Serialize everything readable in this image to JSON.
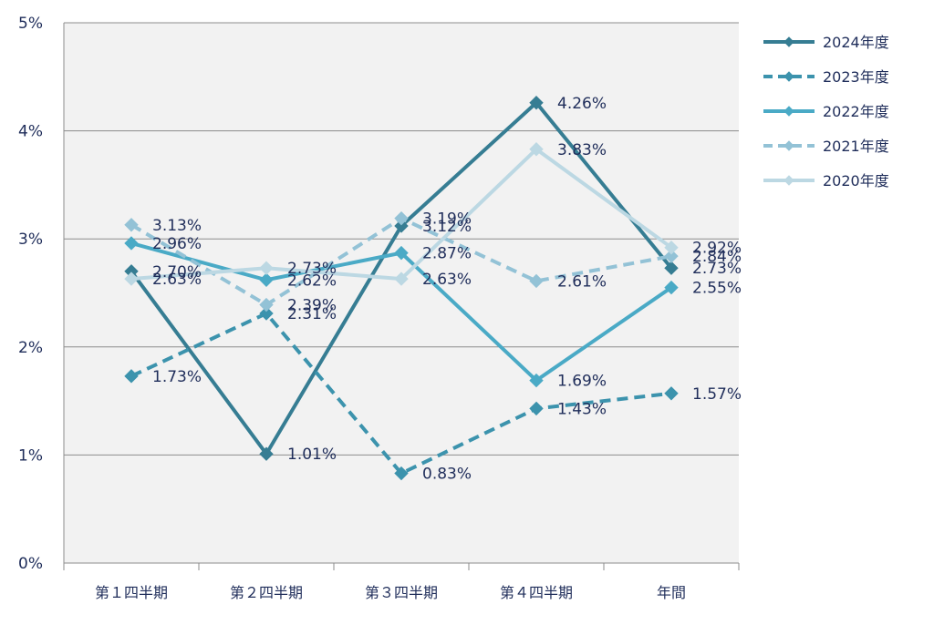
{
  "chart_data": {
    "type": "line",
    "categories": [
      "第１四半期",
      "第２四半期",
      "第３四半期",
      "第４四半期",
      "年間"
    ],
    "ylim": [
      0,
      5
    ],
    "yticks": [
      0,
      1,
      2,
      3,
      4,
      5
    ],
    "ytick_labels": [
      "0%",
      "1%",
      "2%",
      "3%",
      "4%",
      "5%"
    ],
    "grid": true,
    "legend_position": "top-right",
    "series": [
      {
        "name": "2024年度",
        "values": [
          2.7,
          1.01,
          3.12,
          4.26,
          2.73
        ],
        "labels": [
          "2.70%",
          "1.01%",
          "3.12%",
          "4.26%",
          "2.73%"
        ],
        "color": "#367d93",
        "dashed": false
      },
      {
        "name": "2023年度",
        "values": [
          1.73,
          2.31,
          0.83,
          1.43,
          1.57
        ],
        "labels": [
          "1.73%",
          "2.31%",
          "0.83%",
          "1.43%",
          "1.57%"
        ],
        "color": "#3c93ad",
        "dashed": true
      },
      {
        "name": "2022年度",
        "values": [
          2.96,
          2.62,
          2.87,
          1.69,
          2.55
        ],
        "labels": [
          "2.96%",
          "2.62%",
          "2.87%",
          "1.69%",
          "2.55%"
        ],
        "color": "#4aaac6",
        "dashed": false
      },
      {
        "name": "2021年度",
        "values": [
          3.13,
          2.39,
          3.19,
          2.61,
          2.84
        ],
        "labels": [
          "3.13%",
          "2.39%",
          "3.19%",
          "2.61%",
          "2.84%"
        ],
        "color": "#93c2d6",
        "dashed": true
      },
      {
        "name": "2020年度",
        "values": [
          2.63,
          2.73,
          2.63,
          3.83,
          2.92
        ],
        "labels": [
          "2.63%",
          "2.73%",
          "2.63%",
          "3.83%",
          "2.92%"
        ],
        "color": "#bcd8e3",
        "dashed": false
      }
    ]
  }
}
